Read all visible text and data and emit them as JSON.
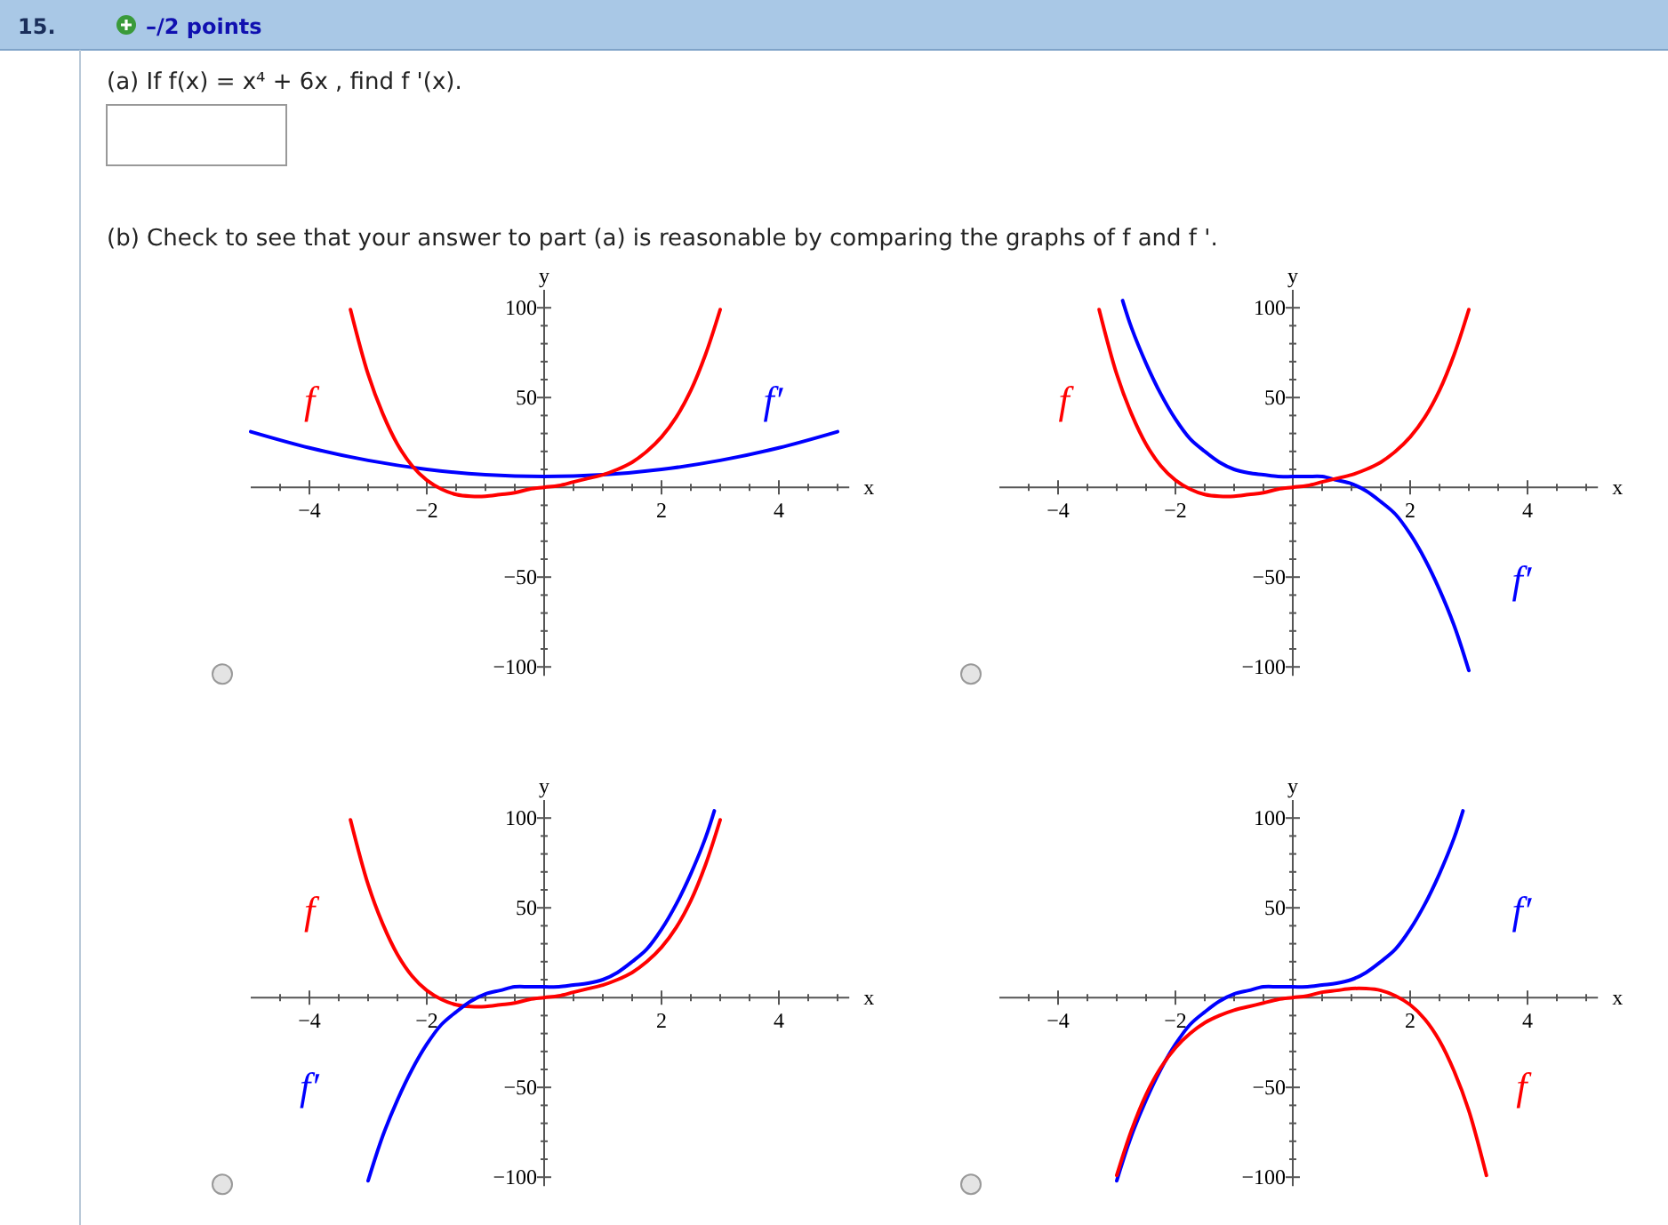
{
  "chart_data": [
    {
      "type": "other",
      "annotations": [
        "15.",
        "–/2 points",
        "(a) If f(x) = x⁴ + 6x , find f '(x).",
        "(b) Check to see that your answer to part (a) is reasonable by comparing the graphs of f and f '."
      ]
    },
    {
      "type": "line",
      "xlabel": "x",
      "ylabel": "y",
      "xlim": [
        -5,
        5.2
      ],
      "ylim": [
        -105,
        110
      ],
      "xticks": [
        {
          "value": -4,
          "label": "−4"
        },
        {
          "value": -2,
          "label": "−2"
        },
        {
          "value": 2,
          "label": "2"
        },
        {
          "value": 4,
          "label": "4"
        },
        {
          "value": -4.5,
          "label": null
        },
        {
          "value": -3.5,
          "label": null
        },
        {
          "value": -3,
          "label": null
        },
        {
          "value": -2.5,
          "label": null
        },
        {
          "value": -1.5,
          "label": null
        },
        {
          "value": -1,
          "label": null
        },
        {
          "value": -0.5,
          "label": null
        },
        {
          "value": 0.5,
          "label": null
        },
        {
          "value": 1,
          "label": null
        },
        {
          "value": 1.5,
          "label": null
        },
        {
          "value": 2.5,
          "label": null
        },
        {
          "value": 3,
          "label": null
        },
        {
          "value": 3.5,
          "label": null
        },
        {
          "value": 4.5,
          "label": null
        },
        {
          "value": 5,
          "label": null
        }
      ],
      "yticks": [
        {
          "value": -100,
          "label": "−100"
        },
        {
          "value": -50,
          "label": "−50"
        },
        {
          "value": 50,
          "label": "50"
        },
        {
          "value": 100,
          "label": "100"
        },
        {
          "value": -90,
          "label": null
        },
        {
          "value": -80,
          "label": null
        },
        {
          "value": -70,
          "label": null
        },
        {
          "value": -60,
          "label": null
        },
        {
          "value": -40,
          "label": null
        },
        {
          "value": -30,
          "label": null
        },
        {
          "value": -20,
          "label": null
        },
        {
          "value": -10,
          "label": null
        },
        {
          "value": 10,
          "label": null
        },
        {
          "value": 20,
          "label": null
        },
        {
          "value": 30,
          "label": null
        },
        {
          "value": 40,
          "label": null
        },
        {
          "value": 60,
          "label": null
        },
        {
          "value": 70,
          "label": null
        },
        {
          "value": 80,
          "label": null
        },
        {
          "value": 90,
          "label": null
        }
      ],
      "series": [
        {
          "name": "f′",
          "color": "#0000ff",
          "x": [
            -5,
            -4,
            -3,
            -2,
            -1,
            0,
            1,
            2,
            3,
            4,
            5
          ],
          "values": [
            31,
            22,
            15,
            10,
            7,
            6,
            7,
            10,
            15,
            22,
            31
          ]
        },
        {
          "name": "f",
          "color": "#ff0000",
          "x": [
            -3.3,
            -3,
            -2.75,
            -2.5,
            -2.25,
            -2,
            -1.75,
            -1.5,
            -1.25,
            -1,
            -0.75,
            -0.5,
            -0.25,
            0,
            0.25,
            0.5,
            0.75,
            1,
            1.25,
            1.5,
            1.75,
            2,
            2.25,
            2.5,
            2.75,
            3
          ],
          "values": [
            99,
            63,
            41,
            24,
            12,
            4,
            -1,
            -4,
            -5,
            -5,
            -4,
            -3,
            -1,
            0,
            1,
            3,
            5,
            7,
            10,
            14,
            20,
            28,
            39,
            54,
            74,
            99
          ]
        }
      ]
    },
    {
      "type": "line",
      "xlabel": "x",
      "ylabel": "y",
      "xlim": [
        -5,
        5.2
      ],
      "ylim": [
        -105,
        110
      ],
      "xticks": [
        {
          "value": -4,
          "label": "−4"
        },
        {
          "value": -2,
          "label": "−2"
        },
        {
          "value": 2,
          "label": "2"
        },
        {
          "value": 4,
          "label": "4"
        },
        {
          "value": -4.5,
          "label": null
        },
        {
          "value": -3.5,
          "label": null
        },
        {
          "value": -3,
          "label": null
        },
        {
          "value": -2.5,
          "label": null
        },
        {
          "value": -1.5,
          "label": null
        },
        {
          "value": -1,
          "label": null
        },
        {
          "value": -0.5,
          "label": null
        },
        {
          "value": 0.5,
          "label": null
        },
        {
          "value": 1,
          "label": null
        },
        {
          "value": 1.5,
          "label": null
        },
        {
          "value": 2.5,
          "label": null
        },
        {
          "value": 3,
          "label": null
        },
        {
          "value": 3.5,
          "label": null
        },
        {
          "value": 4.5,
          "label": null
        },
        {
          "value": 5,
          "label": null
        }
      ],
      "yticks": [
        {
          "value": -100,
          "label": "−100"
        },
        {
          "value": -50,
          "label": "−50"
        },
        {
          "value": 50,
          "label": "50"
        },
        {
          "value": 100,
          "label": "100"
        },
        {
          "value": -90,
          "label": null
        },
        {
          "value": -80,
          "label": null
        },
        {
          "value": -70,
          "label": null
        },
        {
          "value": -60,
          "label": null
        },
        {
          "value": -40,
          "label": null
        },
        {
          "value": -30,
          "label": null
        },
        {
          "value": -20,
          "label": null
        },
        {
          "value": -10,
          "label": null
        },
        {
          "value": 10,
          "label": null
        },
        {
          "value": 20,
          "label": null
        },
        {
          "value": 30,
          "label": null
        },
        {
          "value": 40,
          "label": null
        },
        {
          "value": 60,
          "label": null
        },
        {
          "value": 70,
          "label": null
        },
        {
          "value": 80,
          "label": null
        },
        {
          "value": 90,
          "label": null
        }
      ],
      "series": [
        {
          "name": "f′",
          "color": "#0000ff",
          "x": [
            -2.9,
            -2.75,
            -2.5,
            -2.25,
            -2,
            -1.75,
            -1.5,
            -1.25,
            -1,
            -0.75,
            -0.5,
            -0.25,
            0,
            0.25,
            0.5,
            0.75,
            1,
            1.25,
            1.5,
            1.75,
            2,
            2.25,
            2.5,
            2.75,
            3
          ],
          "values": [
            104,
            89,
            69,
            52,
            38,
            27,
            20,
            14,
            10,
            8,
            7,
            6,
            6,
            6,
            6,
            4,
            2,
            -2,
            -8,
            -15,
            -26,
            -40,
            -57,
            -77,
            -102
          ]
        },
        {
          "name": "f",
          "color": "#ff0000",
          "x": [
            -3.3,
            -3,
            -2.75,
            -2.5,
            -2.25,
            -2,
            -1.75,
            -1.5,
            -1.25,
            -1,
            -0.75,
            -0.5,
            -0.25,
            0,
            0.25,
            0.5,
            0.75,
            1,
            1.25,
            1.5,
            1.75,
            2,
            2.25,
            2.5,
            2.75,
            3
          ],
          "values": [
            99,
            63,
            41,
            24,
            12,
            4,
            -1,
            -4,
            -5,
            -5,
            -4,
            -3,
            -1,
            0,
            1,
            3,
            5,
            7,
            10,
            14,
            20,
            28,
            39,
            54,
            74,
            99
          ]
        }
      ]
    },
    {
      "type": "line",
      "xlabel": "x",
      "ylabel": "y",
      "xlim": [
        -5,
        5.2
      ],
      "ylim": [
        -105,
        110
      ],
      "xticks": [
        {
          "value": -4,
          "label": "−4"
        },
        {
          "value": -2,
          "label": "−2"
        },
        {
          "value": 2,
          "label": "2"
        },
        {
          "value": 4,
          "label": "4"
        },
        {
          "value": -4.5,
          "label": null
        },
        {
          "value": -3.5,
          "label": null
        },
        {
          "value": -3,
          "label": null
        },
        {
          "value": -2.5,
          "label": null
        },
        {
          "value": -1.5,
          "label": null
        },
        {
          "value": -1,
          "label": null
        },
        {
          "value": -0.5,
          "label": null
        },
        {
          "value": 0.5,
          "label": null
        },
        {
          "value": 1,
          "label": null
        },
        {
          "value": 1.5,
          "label": null
        },
        {
          "value": 2.5,
          "label": null
        },
        {
          "value": 3,
          "label": null
        },
        {
          "value": 3.5,
          "label": null
        },
        {
          "value": 4.5,
          "label": null
        },
        {
          "value": 5,
          "label": null
        }
      ],
      "yticks": [
        {
          "value": -100,
          "label": "−100"
        },
        {
          "value": -50,
          "label": "−50"
        },
        {
          "value": 50,
          "label": "50"
        },
        {
          "value": 100,
          "label": "100"
        },
        {
          "value": -90,
          "label": null
        },
        {
          "value": -80,
          "label": null
        },
        {
          "value": -70,
          "label": null
        },
        {
          "value": -60,
          "label": null
        },
        {
          "value": -40,
          "label": null
        },
        {
          "value": -30,
          "label": null
        },
        {
          "value": -20,
          "label": null
        },
        {
          "value": -10,
          "label": null
        },
        {
          "value": 10,
          "label": null
        },
        {
          "value": 20,
          "label": null
        },
        {
          "value": 30,
          "label": null
        },
        {
          "value": 40,
          "label": null
        },
        {
          "value": 60,
          "label": null
        },
        {
          "value": 70,
          "label": null
        },
        {
          "value": 80,
          "label": null
        },
        {
          "value": 90,
          "label": null
        }
      ],
      "series": [
        {
          "name": "f",
          "color": "#ff0000",
          "x": [
            -3.3,
            -3,
            -2.75,
            -2.5,
            -2.25,
            -2,
            -1.75,
            -1.5,
            -1.25,
            -1,
            -0.75,
            -0.5,
            -0.25,
            0,
            0.25,
            0.5,
            0.75,
            1,
            1.25,
            1.5,
            1.75,
            2,
            2.25,
            2.5,
            2.75,
            3
          ],
          "values": [
            99,
            63,
            41,
            24,
            12,
            4,
            -1,
            -4,
            -5,
            -5,
            -4,
            -3,
            -1,
            0,
            1,
            3,
            5,
            7,
            10,
            14,
            20,
            28,
            39,
            54,
            74,
            99
          ]
        },
        {
          "name": "f′",
          "color": "#0000ff",
          "x": [
            -3,
            -2.75,
            -2.5,
            -2.25,
            -2,
            -1.75,
            -1.5,
            -1.25,
            -1,
            -0.75,
            -0.5,
            -0.25,
            0,
            0.25,
            0.5,
            0.75,
            1,
            1.25,
            1.5,
            1.75,
            2,
            2.25,
            2.5,
            2.75,
            2.9
          ],
          "values": [
            -102,
            -77,
            -57,
            -40,
            -26,
            -15,
            -8,
            -2,
            2,
            4,
            6,
            6,
            6,
            6,
            7,
            8,
            10,
            14,
            20,
            27,
            38,
            52,
            69,
            89,
            104
          ]
        }
      ]
    },
    {
      "type": "line",
      "xlabel": "x",
      "ylabel": "y",
      "xlim": [
        -5,
        5.2
      ],
      "ylim": [
        -105,
        110
      ],
      "xticks": [
        {
          "value": -4,
          "label": "−4"
        },
        {
          "value": -2,
          "label": "−2"
        },
        {
          "value": 2,
          "label": "2"
        },
        {
          "value": 4,
          "label": "4"
        },
        {
          "value": -4.5,
          "label": null
        },
        {
          "value": -3.5,
          "label": null
        },
        {
          "value": -3,
          "label": null
        },
        {
          "value": -2.5,
          "label": null
        },
        {
          "value": -1.5,
          "label": null
        },
        {
          "value": -1,
          "label": null
        },
        {
          "value": -0.5,
          "label": null
        },
        {
          "value": 0.5,
          "label": null
        },
        {
          "value": 1,
          "label": null
        },
        {
          "value": 1.5,
          "label": null
        },
        {
          "value": 2.5,
          "label": null
        },
        {
          "value": 3,
          "label": null
        },
        {
          "value": 3.5,
          "label": null
        },
        {
          "value": 4.5,
          "label": null
        },
        {
          "value": 5,
          "label": null
        }
      ],
      "yticks": [
        {
          "value": -100,
          "label": "−100"
        },
        {
          "value": -50,
          "label": "−50"
        },
        {
          "value": 50,
          "label": "50"
        },
        {
          "value": 100,
          "label": "100"
        },
        {
          "value": -90,
          "label": null
        },
        {
          "value": -80,
          "label": null
        },
        {
          "value": -70,
          "label": null
        },
        {
          "value": -60,
          "label": null
        },
        {
          "value": -40,
          "label": null
        },
        {
          "value": -30,
          "label": null
        },
        {
          "value": -20,
          "label": null
        },
        {
          "value": -10,
          "label": null
        },
        {
          "value": 10,
          "label": null
        },
        {
          "value": 20,
          "label": null
        },
        {
          "value": 30,
          "label": null
        },
        {
          "value": 40,
          "label": null
        },
        {
          "value": 60,
          "label": null
        },
        {
          "value": 70,
          "label": null
        },
        {
          "value": 80,
          "label": null
        },
        {
          "value": 90,
          "label": null
        }
      ],
      "series": [
        {
          "name": "f′",
          "color": "#0000ff",
          "x": [
            -3,
            -2.75,
            -2.5,
            -2.25,
            -2,
            -1.75,
            -1.5,
            -1.25,
            -1,
            -0.75,
            -0.5,
            -0.25,
            0,
            0.25,
            0.5,
            0.75,
            1,
            1.25,
            1.5,
            1.75,
            2,
            2.25,
            2.5,
            2.75,
            2.9
          ],
          "values": [
            -102,
            -77,
            -57,
            -40,
            -26,
            -15,
            -8,
            -2,
            2,
            4,
            6,
            6,
            6,
            6,
            7,
            8,
            10,
            14,
            20,
            27,
            38,
            52,
            69,
            89,
            104
          ]
        },
        {
          "name": "f",
          "color": "#ff0000",
          "x": [
            -3,
            -2.75,
            -2.5,
            -2.25,
            -2,
            -1.75,
            -1.5,
            -1.25,
            -1,
            -0.75,
            -0.5,
            -0.25,
            0,
            0.25,
            0.5,
            0.75,
            1,
            1.25,
            1.5,
            1.75,
            2,
            2.25,
            2.5,
            2.75,
            3,
            3.3
          ],
          "values": [
            -99,
            -74,
            -54,
            -39,
            -28,
            -20,
            -14,
            -10,
            -7,
            -5,
            -3,
            -1,
            0,
            1,
            3,
            4,
            5,
            5,
            4,
            1,
            -4,
            -12,
            -24,
            -41,
            -63,
            -99
          ]
        }
      ]
    }
  ]
}
